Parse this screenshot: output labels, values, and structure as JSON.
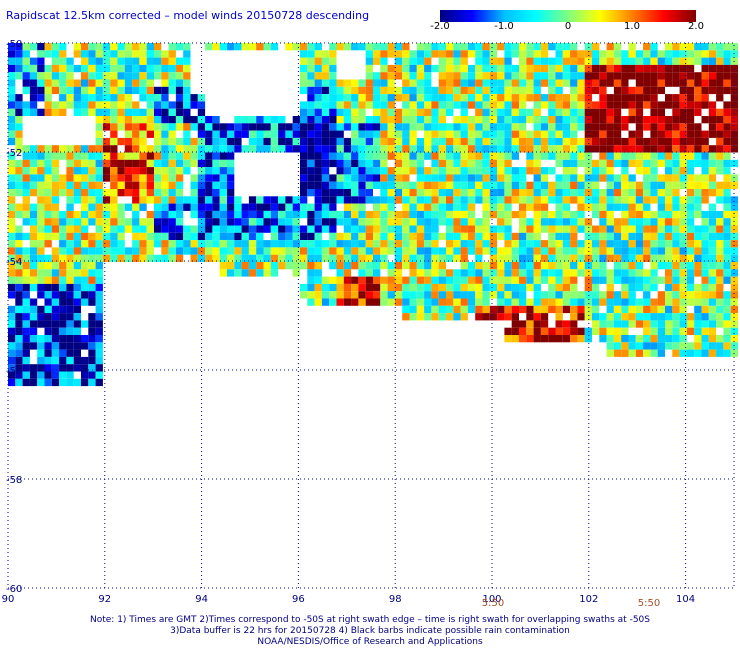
{
  "title": "Rapidscat 12.5km corrected – model winds 20150728 descending",
  "colorbar": {
    "stops": [
      "#000080",
      "#0000ff",
      "#00bfff",
      "#00ffff",
      "#7fff7f",
      "#ffff00",
      "#ff8000",
      "#ff0000",
      "#800000"
    ],
    "range": [
      -2.0,
      2.0
    ],
    "tick_labels": [
      "-2.0",
      "-1.0",
      "0",
      "1.0",
      "2.0"
    ]
  },
  "map": {
    "lon_labels": [
      "90",
      "92",
      "94",
      "96",
      "98",
      "100",
      "102",
      "104"
    ],
    "lat_labels": [
      "-50",
      "-52",
      "-54",
      "-56",
      "-58",
      "-60"
    ],
    "grid": "dotted"
  },
  "time_marks": [
    "5:50",
    "5:50"
  ],
  "footer": {
    "note1": "Note: 1) Times are GMT 2)Times correspond to -50S at right swath edge – time is right swath for overlapping swaths at -50S",
    "note2": "3)Data buffer is 22 hrs for 20150728 4) Black barbs indicate possible rain contamination",
    "credit": "NOAA/NESDIS/Office of Research and Applications"
  }
}
